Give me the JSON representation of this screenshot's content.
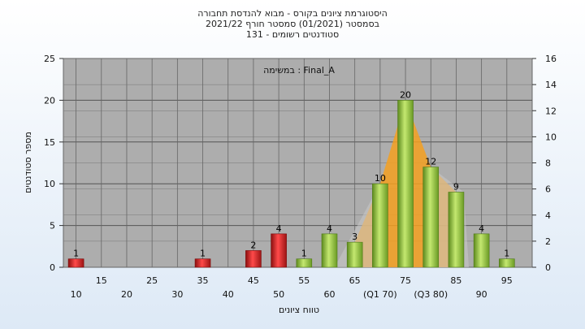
{
  "chart_data": {
    "type": "bar",
    "title_lines": [
      "היסטוגרמת ציונים בקורס - מבוא להנדסת תחבורה",
      "בסמסטר  (01/2021)  סמסטר חורף 2021/22",
      "131 - סטודנטים רשומים"
    ],
    "annotation": "במשימה : Final_A",
    "xlabel": "טווח ציונים",
    "ylabel": "מספר סטודנטים",
    "ylim": [
      0,
      25
    ],
    "y_ticks": [
      "0",
      "5",
      "10",
      "15",
      "20",
      "25"
    ],
    "y2lim": [
      0,
      16
    ],
    "y2_ticks": [
      "0",
      "2",
      "4",
      "6",
      "8",
      "10",
      "12",
      "14",
      "16"
    ],
    "grid": true,
    "x_tick_labels": [
      {
        "x": 10,
        "label": "10",
        "row": 2
      },
      {
        "x": 15,
        "label": "15",
        "row": 1
      },
      {
        "x": 20,
        "label": "20",
        "row": 2
      },
      {
        "x": 25,
        "label": "25",
        "row": 1
      },
      {
        "x": 30,
        "label": "30",
        "row": 2
      },
      {
        "x": 35,
        "label": "35",
        "row": 1
      },
      {
        "x": 40,
        "label": "40",
        "row": 2
      },
      {
        "x": 45,
        "label": "45",
        "row": 1
      },
      {
        "x": 50,
        "label": "50",
        "row": 2
      },
      {
        "x": 55,
        "label": "55",
        "row": 1
      },
      {
        "x": 60,
        "label": "60",
        "row": 2
      },
      {
        "x": 65,
        "label": "65",
        "row": 1
      },
      {
        "x": 70,
        "label": "(Q1 70)",
        "row": 2
      },
      {
        "x": 75,
        "label": "75",
        "row": 1
      },
      {
        "x": 80,
        "label": "(Q3 80)",
        "row": 2
      },
      {
        "x": 85,
        "label": "85",
        "row": 1
      },
      {
        "x": 90,
        "label": "90",
        "row": 2
      },
      {
        "x": 95,
        "label": "95",
        "row": 1
      }
    ],
    "bars": [
      {
        "x": 10,
        "value": 1,
        "label": "1",
        "color": "#e03030"
      },
      {
        "x": 35,
        "value": 1,
        "label": "1",
        "color": "#e03030"
      },
      {
        "x": 45,
        "value": 2,
        "label": "2",
        "color": "#e03030"
      },
      {
        "x": 50,
        "value": 4,
        "label": "4",
        "color": "#e03030"
      },
      {
        "x": 55,
        "value": 1,
        "label": "1",
        "color": "#9acd45"
      },
      {
        "x": 60,
        "value": 4,
        "label": "4",
        "color": "#9acd45"
      },
      {
        "x": 65,
        "value": 3,
        "label": "3",
        "color": "#9acd45"
      },
      {
        "x": 70,
        "value": 10,
        "label": "10",
        "color": "#9acd45"
      },
      {
        "x": 75,
        "value": 20,
        "label": "20",
        "color": "#9acd45"
      },
      {
        "x": 80,
        "value": 12,
        "label": "12",
        "color": "#9acd45"
      },
      {
        "x": 85,
        "value": 9,
        "label": "9",
        "color": "#9acd45"
      },
      {
        "x": 90,
        "value": 4,
        "label": "4",
        "color": "#9acd45"
      },
      {
        "x": 95,
        "value": 1,
        "label": "1",
        "color": "#9acd45"
      }
    ],
    "distribution_band": {
      "color": "#f5a020",
      "points": [
        [
          65,
          3
        ],
        [
          70,
          10
        ],
        [
          75,
          20
        ],
        [
          80,
          12
        ],
        [
          85,
          9
        ]
      ]
    },
    "plot_bg": "#adadad"
  }
}
